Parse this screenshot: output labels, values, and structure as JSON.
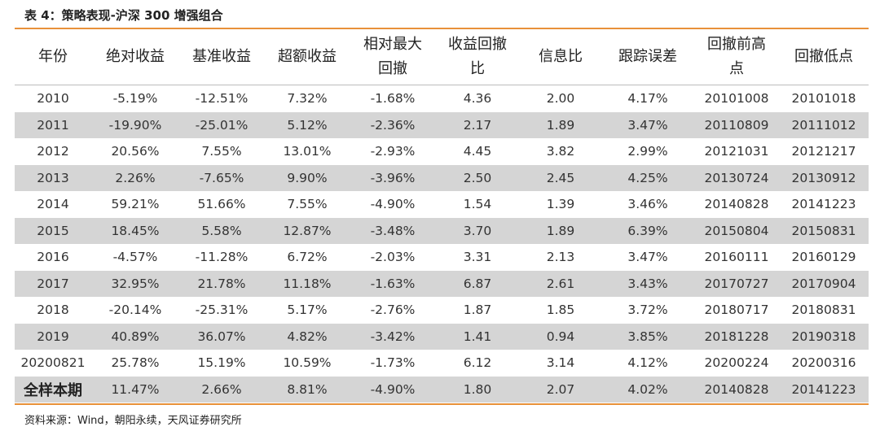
{
  "title": "表 4：策略表现-沪深 300 增强组合",
  "headers": [
    "年份",
    "绝对收益",
    "基准收益",
    "超额收益",
    "相对最大\n回撤",
    "收益回撤\n比",
    "信息比",
    "跟踪误差",
    "回撤前高\n点",
    "回撤低点"
  ],
  "rows": [
    [
      "2010",
      "-5.19%",
      "-12.51%",
      "7.32%",
      "-1.68%",
      "4.36",
      "2.00",
      "4.17%",
      "20101008",
      "20101018"
    ],
    [
      "2011",
      "-19.90%",
      "-25.01%",
      "5.12%",
      "-2.36%",
      "2.17",
      "1.89",
      "3.47%",
      "20110809",
      "20111012"
    ],
    [
      "2012",
      "20.56%",
      "7.55%",
      "13.01%",
      "-2.93%",
      "4.45",
      "3.82",
      "2.99%",
      "20121031",
      "20121217"
    ],
    [
      "2013",
      "2.26%",
      "-7.65%",
      "9.90%",
      "-3.96%",
      "2.50",
      "2.45",
      "4.25%",
      "20130724",
      "20130912"
    ],
    [
      "2014",
      "59.21%",
      "51.66%",
      "7.55%",
      "-4.90%",
      "1.54",
      "1.39",
      "3.46%",
      "20140828",
      "20141223"
    ],
    [
      "2015",
      "18.45%",
      "5.58%",
      "12.87%",
      "-3.48%",
      "3.70",
      "1.89",
      "6.39%",
      "20150804",
      "20150831"
    ],
    [
      "2016",
      "-4.57%",
      "-11.28%",
      "6.72%",
      "-2.03%",
      "3.31",
      "2.13",
      "3.47%",
      "20160111",
      "20160129"
    ],
    [
      "2017",
      "32.95%",
      "21.78%",
      "11.18%",
      "-1.63%",
      "6.87",
      "2.61",
      "3.43%",
      "20170727",
      "20170904"
    ],
    [
      "2018",
      "-20.14%",
      "-25.31%",
      "5.17%",
      "-2.76%",
      "1.87",
      "1.85",
      "3.72%",
      "20180717",
      "20180831"
    ],
    [
      "2019",
      "40.89%",
      "36.07%",
      "4.82%",
      "-3.42%",
      "1.41",
      "0.94",
      "3.85%",
      "20181228",
      "20190318"
    ],
    [
      "20200821",
      "25.78%",
      "15.19%",
      "10.59%",
      "-1.73%",
      "6.12",
      "3.14",
      "4.12%",
      "20200224",
      "20200316"
    ]
  ],
  "summary": [
    "全样本期",
    "11.47%",
    "2.66%",
    "8.81%",
    "-4.90%",
    "1.80",
    "2.07",
    "4.02%",
    "20140828",
    "20141223"
  ],
  "source": "资料来源：Wind，朝阳永续，天风证券研究所",
  "colors": {
    "accent_rule": "#E8913A",
    "row_shade": "#D5D5D5"
  }
}
